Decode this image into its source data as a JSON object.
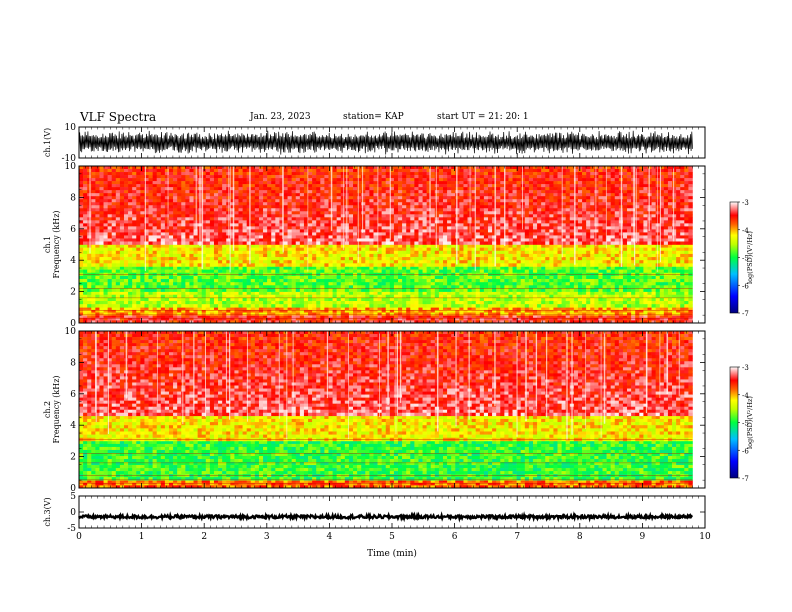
{
  "header": {
    "title": "VLF Spectra",
    "date": "Jan. 23, 2023",
    "station": "station= KAP",
    "start": "start UT =  21: 20: 1"
  },
  "chart_data": [
    {
      "type": "line",
      "name": "ch1-waveform",
      "ylabel": "ch.1(V)",
      "ylim": [
        -10,
        10
      ],
      "yticks": [
        "10",
        "-10"
      ],
      "xlim": [
        0,
        10
      ],
      "description_values": {
        "x_end_min": 9.8,
        "amplitude_approx_V": [
          -8,
          8
        ]
      }
    },
    {
      "type": "heatmap",
      "name": "ch1-spectrogram",
      "ylabel": "ch.1\nFrequency (kHz)",
      "ylim": [
        0,
        10
      ],
      "yticks": [
        "0",
        "2",
        "4",
        "6",
        "8",
        "10"
      ],
      "xlim": [
        0,
        10
      ],
      "x_end_min": 9.8,
      "colorbar": {
        "label": "log(PSD)(V²/Hz)",
        "ticks": [
          "-3",
          "-4",
          "-5",
          "-6",
          "-7"
        ],
        "range": [
          -7,
          -3
        ]
      },
      "bands_kHz": [
        {
          "from": 0,
          "to": 0.5,
          "level": -3.5
        },
        {
          "from": 0.5,
          "to": 1.0,
          "level": -4.0
        },
        {
          "from": 1.0,
          "to": 2.0,
          "level": -4.5
        },
        {
          "from": 2.0,
          "to": 3.6,
          "level": -4.8
        },
        {
          "from": 3.6,
          "to": 5.0,
          "level": -4.2
        },
        {
          "from": 5.0,
          "to": 10.0,
          "level": -3.3
        }
      ]
    },
    {
      "type": "heatmap",
      "name": "ch2-spectrogram",
      "ylabel": "ch.2\nFrequency (kHz)",
      "ylim": [
        0,
        10
      ],
      "yticks": [
        "0",
        "2",
        "4",
        "6",
        "8",
        "10"
      ],
      "xlim": [
        0,
        10
      ],
      "x_end_min": 9.8,
      "colorbar": {
        "label": "log(PSD)(V²/Hz)",
        "ticks": [
          "-3",
          "-4",
          "-5",
          "-6",
          "-7"
        ],
        "range": [
          -7,
          -3
        ]
      },
      "bands_kHz": [
        {
          "from": 0,
          "to": 0.5,
          "level": -3.8
        },
        {
          "from": 0.5,
          "to": 3.0,
          "level": -4.9
        },
        {
          "from": 3.0,
          "to": 4.6,
          "level": -4.2
        },
        {
          "from": 4.6,
          "to": 10.0,
          "level": -3.3
        }
      ]
    },
    {
      "type": "line",
      "name": "ch3-waveform",
      "ylabel": "ch.3(V)",
      "ylim": [
        -5,
        5
      ],
      "yticks": [
        "5",
        "0",
        "-5"
      ],
      "xlim": [
        0,
        10
      ],
      "xlabel": "Time (min)",
      "xticks": [
        "0",
        "1",
        "2",
        "3",
        "4",
        "5",
        "6",
        "7",
        "8",
        "9",
        "10"
      ],
      "description_values": {
        "x_end_min": 9.8,
        "offset_V": -1.5,
        "amplitude_approx_V": [
          -2,
          -1
        ]
      }
    }
  ],
  "colors": {
    "jet": [
      "#000080",
      "#0000ff",
      "#00a0ff",
      "#00ff80",
      "#80ff00",
      "#ffff00",
      "#ff8000",
      "#ff0000",
      "#ffffff"
    ]
  }
}
